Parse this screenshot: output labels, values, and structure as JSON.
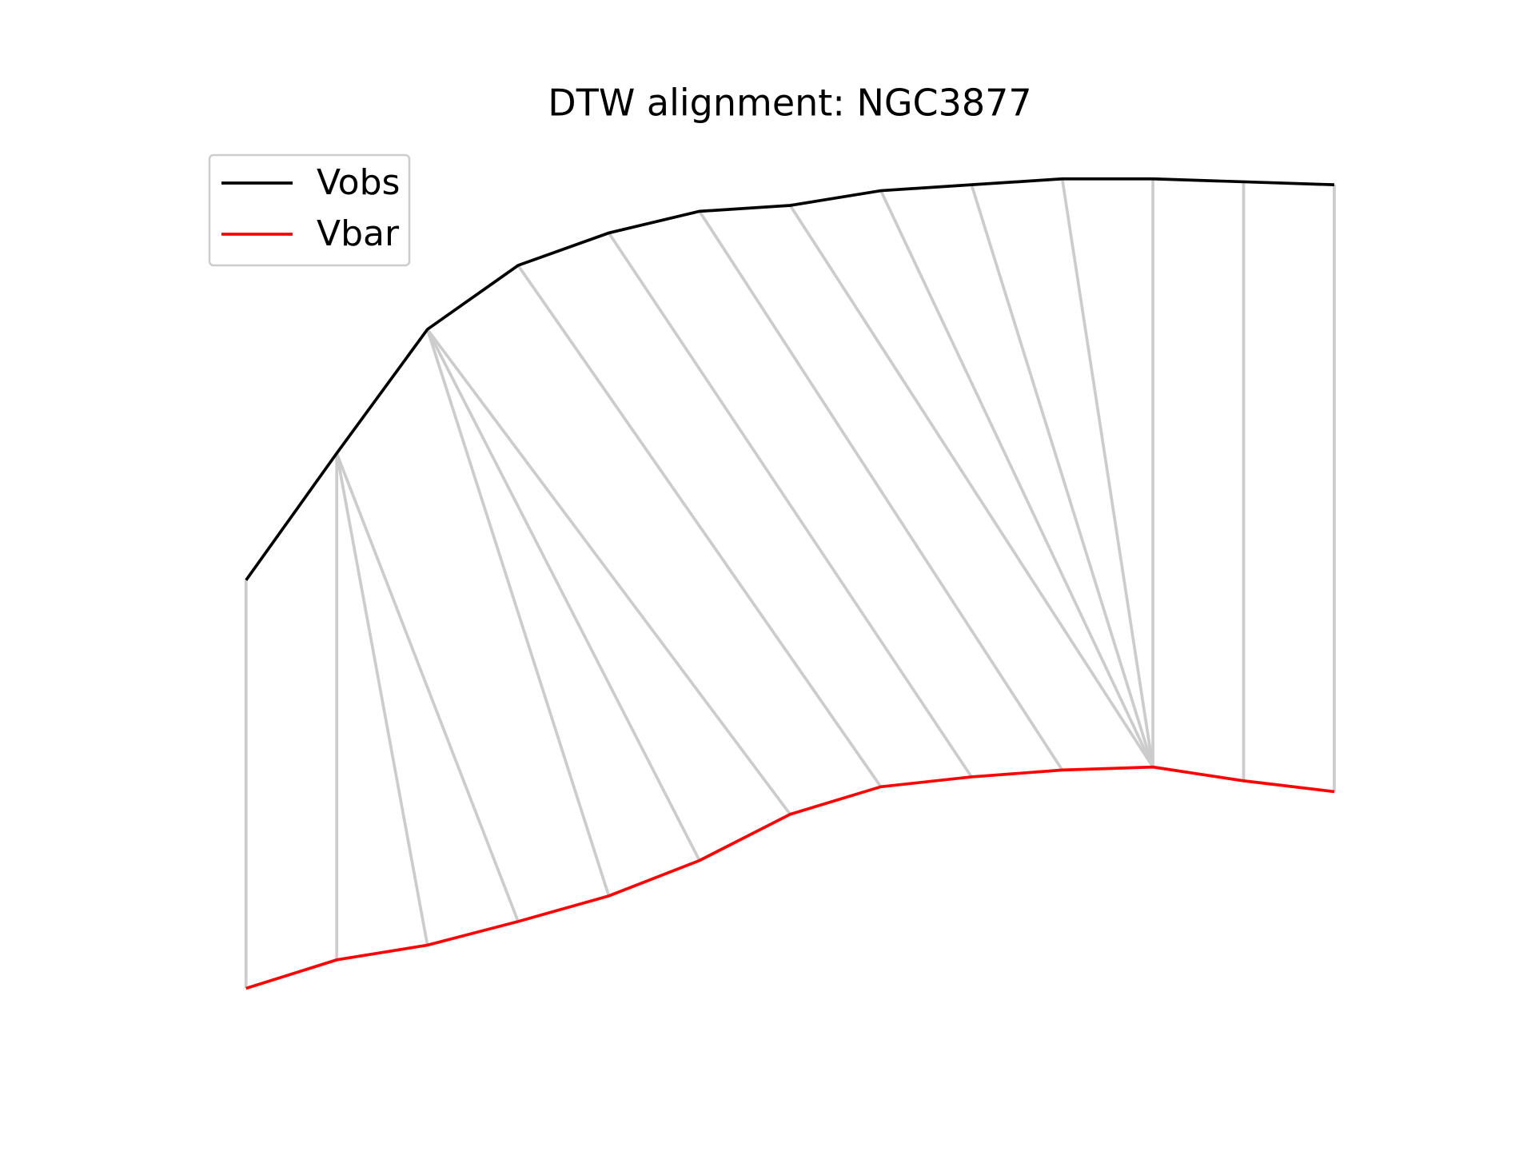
{
  "chart_data": {
    "type": "line",
    "title": "DTW alignment: NGC3877",
    "x": [
      0,
      1,
      2,
      3,
      4,
      5,
      6,
      7,
      8,
      9,
      10,
      11,
      12
    ],
    "xlim": [
      -0.6,
      12.6
    ],
    "ylim": [
      80,
      930
    ],
    "series": [
      {
        "name": "Vobs",
        "color": "#000000",
        "values": [
          510,
          639,
          765,
          830,
          863,
          885,
          891,
          906,
          912,
          918,
          918,
          915,
          912
        ]
      },
      {
        "name": "Vbar",
        "color": "#ff0000",
        "values": [
          95,
          124,
          139,
          163,
          189,
          225,
          272,
          300,
          310,
          317,
          320,
          306,
          295
        ]
      }
    ],
    "alignment_color": "#cccccc",
    "alignment": [
      [
        0,
        0
      ],
      [
        1,
        1
      ],
      [
        1,
        2
      ],
      [
        1,
        3
      ],
      [
        2,
        4
      ],
      [
        2,
        5
      ],
      [
        2,
        6
      ],
      [
        3,
        7
      ],
      [
        4,
        8
      ],
      [
        5,
        9
      ],
      [
        6,
        10
      ],
      [
        7,
        10
      ],
      [
        8,
        10
      ],
      [
        9,
        10
      ],
      [
        10,
        10
      ],
      [
        11,
        11
      ],
      [
        12,
        12
      ]
    ],
    "legend": "upper left"
  }
}
